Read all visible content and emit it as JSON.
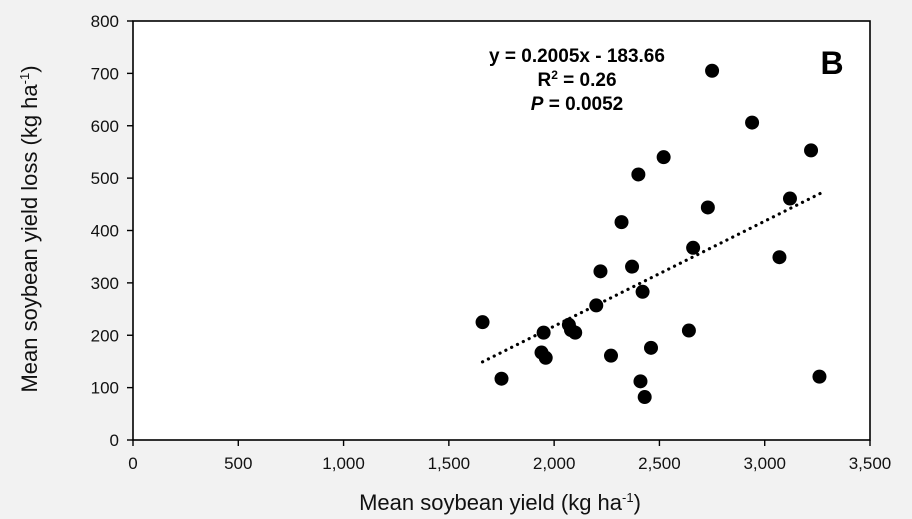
{
  "chart_data": {
    "type": "scatter",
    "panel_label": "B",
    "xlabel_main": "Mean soybean yield (kg ha",
    "ylabel_main": "Mean soybean yield loss (kg ha",
    "unit_exp": "-1",
    "unit_close": ")",
    "xlim": [
      0,
      3500
    ],
    "ylim": [
      0,
      800
    ],
    "xticks": [
      0,
      500,
      1000,
      1500,
      2000,
      2500,
      3000,
      3500
    ],
    "xtick_labels": [
      "0",
      "500",
      "1,000",
      "1,500",
      "2,000",
      "2,500",
      "3,000",
      "3,500"
    ],
    "yticks": [
      0,
      100,
      200,
      300,
      400,
      500,
      600,
      700,
      800
    ],
    "ytick_labels": [
      "0",
      "100",
      "200",
      "300",
      "400",
      "500",
      "600",
      "700",
      "800"
    ],
    "grid": false,
    "equation": "y = 0.2005x - 183.66",
    "r2_prefix": "R",
    "r2_exp": "2",
    "r2_value": " = 0.26",
    "p_symbol": "P",
    "p_value": " = 0.0052",
    "trendline": {
      "style": "dotted",
      "slope": 0.2005,
      "intercept": -183.66,
      "x_range": [
        1660,
        3270
      ]
    },
    "points": [
      {
        "x": 1660,
        "y": 225
      },
      {
        "x": 1750,
        "y": 117
      },
      {
        "x": 1940,
        "y": 167
      },
      {
        "x": 1950,
        "y": 205
      },
      {
        "x": 1960,
        "y": 157
      },
      {
        "x": 2070,
        "y": 220
      },
      {
        "x": 2080,
        "y": 210
      },
      {
        "x": 2100,
        "y": 205
      },
      {
        "x": 2200,
        "y": 257
      },
      {
        "x": 2220,
        "y": 322
      },
      {
        "x": 2270,
        "y": 161
      },
      {
        "x": 2320,
        "y": 416
      },
      {
        "x": 2370,
        "y": 331
      },
      {
        "x": 2400,
        "y": 507
      },
      {
        "x": 2410,
        "y": 112
      },
      {
        "x": 2420,
        "y": 283
      },
      {
        "x": 2430,
        "y": 82
      },
      {
        "x": 2460,
        "y": 176
      },
      {
        "x": 2520,
        "y": 540
      },
      {
        "x": 2640,
        "y": 209
      },
      {
        "x": 2660,
        "y": 367
      },
      {
        "x": 2730,
        "y": 444
      },
      {
        "x": 2750,
        "y": 705
      },
      {
        "x": 2940,
        "y": 606
      },
      {
        "x": 3070,
        "y": 349
      },
      {
        "x": 3120,
        "y": 461
      },
      {
        "x": 3220,
        "y": 553
      },
      {
        "x": 3260,
        "y": 121
      }
    ]
  }
}
